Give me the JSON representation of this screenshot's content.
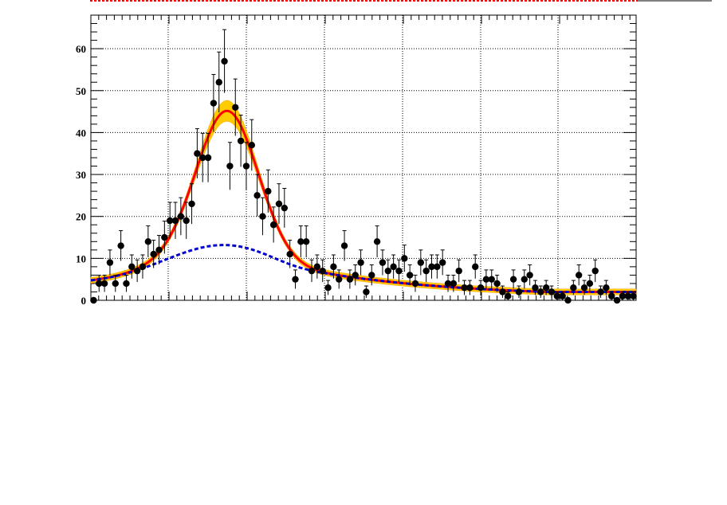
{
  "chart_data": {
    "type": "scatter",
    "title": "",
    "xlabel": "",
    "ylabel": "",
    "ylim": [
      0,
      68
    ],
    "y_ticks": [
      0,
      10,
      20,
      30,
      40,
      50,
      60
    ],
    "grid": true,
    "series": [
      {
        "values": [
          0,
          4,
          4,
          9,
          4,
          13,
          4,
          8,
          7,
          8,
          14,
          11,
          12,
          15,
          19,
          19,
          20,
          19,
          23,
          35,
          34,
          34,
          47,
          52,
          57,
          32,
          46,
          38,
          32,
          37,
          25,
          20,
          26,
          18,
          23,
          22,
          11,
          5,
          14,
          14,
          7,
          8,
          7,
          3,
          8,
          5,
          13,
          5,
          6,
          9,
          2,
          6,
          14,
          9,
          7,
          8,
          7,
          10,
          6,
          4,
          9,
          7,
          8,
          8,
          9,
          4,
          4,
          7,
          3,
          3,
          8,
          3,
          5,
          5,
          4,
          2,
          1,
          5,
          2,
          5,
          6,
          3,
          2,
          3,
          2,
          1,
          1,
          0,
          3,
          6,
          3,
          4,
          7,
          2,
          3,
          1,
          0,
          1,
          1,
          1
        ]
      },
      {
        "style": "solid-red"
      },
      {
        "style": "dashed-blue"
      }
    ],
    "colors": {
      "data": "#000000",
      "fit": "#ff0000",
      "band": "#ffcc00",
      "band_edge": "#ff9900",
      "background": "#0000cc",
      "top_line": "#ff0000"
    }
  }
}
